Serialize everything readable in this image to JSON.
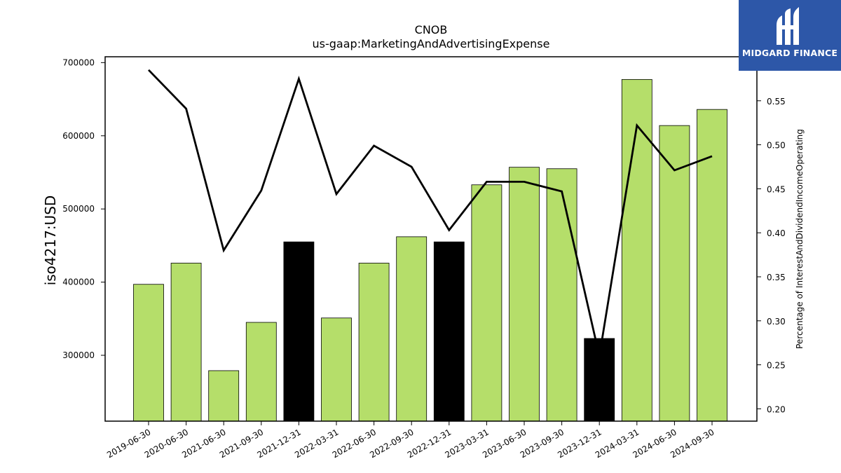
{
  "chart_data": {
    "type": "bar",
    "title": "CNOB",
    "subtitle": "us-gaap:MarketingAndAdvertisingExpense",
    "ylabel": "iso4217:USD",
    "y2label": "Percentage of InterestAndDividendIncomeOperating",
    "categories": [
      "2019-06-30",
      "2020-06-30",
      "2021-06-30",
      "2021-09-30",
      "2021-12-31",
      "2022-03-31",
      "2022-06-30",
      "2022-09-30",
      "2022-12-31",
      "2023-03-31",
      "2023-06-30",
      "2023-09-30",
      "2023-12-31",
      "2024-03-31",
      "2024-06-30",
      "2024-09-30"
    ],
    "series": [
      {
        "type": "bar",
        "values": [
          397000,
          426000,
          279000,
          345000,
          455000,
          351000,
          426000,
          462000,
          455000,
          533000,
          557000,
          555000,
          323000,
          677000,
          614000,
          636000
        ],
        "colors": [
          "#b5de6a",
          "#b5de6a",
          "#b5de6a",
          "#b5de6a",
          "#000000",
          "#b5de6a",
          "#b5de6a",
          "#b5de6a",
          "#000000",
          "#b5de6a",
          "#b5de6a",
          "#b5de6a",
          "#000000",
          "#b5de6a",
          "#b5de6a",
          "#b5de6a"
        ]
      },
      {
        "type": "line",
        "axis": "right",
        "color": "#000000",
        "values": [
          0.585,
          0.541,
          0.38,
          0.448,
          0.575,
          0.444,
          0.499,
          0.475,
          0.403,
          0.458,
          0.458,
          0.447,
          0.26,
          0.522,
          0.471,
          0.487
        ]
      }
    ],
    "ylim": [
      210000,
      708000
    ],
    "yticks": [
      300000,
      400000,
      500000,
      600000,
      700000
    ],
    "y2lim": [
      0.186,
      0.6
    ],
    "y2ticks": [
      0.2,
      0.25,
      0.3,
      0.35,
      0.4,
      0.45,
      0.5,
      0.55
    ],
    "y2tick_labels": [
      "0.20",
      "0.25",
      "0.30",
      "0.35",
      "0.40",
      "0.45",
      "0.50",
      "0.55"
    ],
    "grid": false,
    "legend": "none"
  },
  "logo": {
    "text": "MIDGARD FINANCE",
    "bg_color": "#2d57a8",
    "icon": "midgard-logo-icon"
  }
}
